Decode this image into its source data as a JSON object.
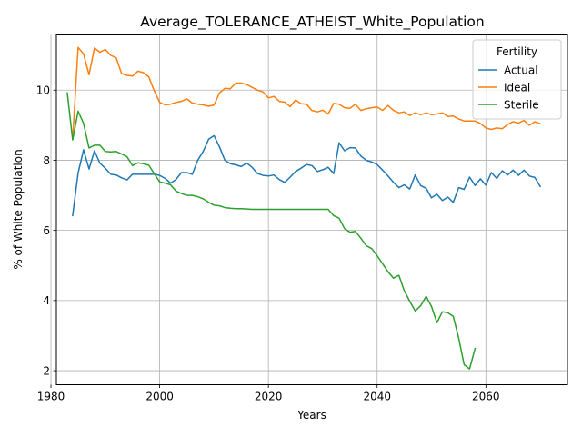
{
  "chart_data": {
    "type": "line",
    "title": "Average_TOLERANCE_ATHEIST_White_Population",
    "xlabel": "Years",
    "ylabel": "% of White Population",
    "xlim": [
      1981,
      2075
    ],
    "ylim": [
      1.6,
      11.6
    ],
    "xticks": [
      1980,
      2000,
      2020,
      2040,
      2060
    ],
    "yticks": [
      2,
      4,
      6,
      8,
      10
    ],
    "grid": true,
    "legend": {
      "title": "Fertility",
      "placement": "top-right"
    },
    "series": [
      {
        "name": "Actual",
        "color": "#1f77b4",
        "x": [
          1984,
          1985,
          1986,
          1987,
          1988,
          1989,
          1990,
          1991,
          1992,
          1993,
          1994,
          1995,
          1996,
          1997,
          1998,
          1999,
          2000,
          2001,
          2002,
          2003,
          2004,
          2005,
          2006,
          2007,
          2008,
          2009,
          2010,
          2011,
          2012,
          2013,
          2014,
          2015,
          2016,
          2017,
          2018,
          2019,
          2020,
          2021,
          2022,
          2023,
          2024,
          2025,
          2026,
          2027,
          2028,
          2029,
          2030,
          2031,
          2032,
          2033,
          2034,
          2035,
          2036,
          2037,
          2038,
          2039,
          2040,
          2041,
          2042,
          2043,
          2044,
          2045,
          2046,
          2047,
          2048,
          2049,
          2050,
          2051,
          2052,
          2053,
          2054,
          2055,
          2056,
          2057,
          2058,
          2059,
          2060,
          2061,
          2062,
          2063,
          2064,
          2065,
          2066,
          2067,
          2068,
          2069,
          2070
        ],
        "y": [
          6.42,
          7.64,
          8.3,
          7.75,
          8.27,
          7.92,
          7.77,
          7.6,
          7.58,
          7.5,
          7.44,
          7.6,
          7.6,
          7.6,
          7.6,
          7.6,
          7.57,
          7.48,
          7.35,
          7.45,
          7.65,
          7.65,
          7.6,
          8.0,
          8.25,
          8.6,
          8.7,
          8.38,
          8.0,
          7.9,
          7.87,
          7.82,
          7.92,
          7.8,
          7.62,
          7.57,
          7.55,
          7.58,
          7.45,
          7.37,
          7.52,
          7.68,
          7.77,
          7.88,
          7.85,
          7.68,
          7.73,
          7.8,
          7.62,
          8.5,
          8.27,
          8.36,
          8.35,
          8.12,
          8.0,
          7.95,
          7.88,
          7.72,
          7.55,
          7.37,
          7.22,
          7.3,
          7.18,
          7.58,
          7.28,
          7.2,
          6.93,
          7.03,
          6.85,
          6.95,
          6.8,
          7.22,
          7.17,
          7.52,
          7.28,
          7.47,
          7.29,
          7.65,
          7.48,
          7.7,
          7.58,
          7.72,
          7.57,
          7.72,
          7.55,
          7.51,
          7.25
        ]
      },
      {
        "name": "Ideal",
        "color": "#ff7f0e",
        "x": [
          1984,
          1985,
          1986,
          1987,
          1988,
          1989,
          1990,
          1991,
          1992,
          1993,
          1994,
          1995,
          1996,
          1997,
          1998,
          1999,
          2000,
          2001,
          2002,
          2003,
          2004,
          2005,
          2006,
          2007,
          2008,
          2009,
          2010,
          2011,
          2012,
          2013,
          2014,
          2015,
          2016,
          2017,
          2018,
          2019,
          2020,
          2021,
          2022,
          2023,
          2024,
          2025,
          2026,
          2027,
          2028,
          2029,
          2030,
          2031,
          2032,
          2033,
          2034,
          2035,
          2036,
          2037,
          2038,
          2039,
          2040,
          2041,
          2042,
          2043,
          2044,
          2045,
          2046,
          2047,
          2048,
          2049,
          2050,
          2051,
          2052,
          2053,
          2054,
          2055,
          2056,
          2057,
          2058,
          2059,
          2060,
          2061,
          2062,
          2063,
          2064,
          2065,
          2066,
          2067,
          2068,
          2069,
          2070
        ],
        "y": [
          8.6,
          11.22,
          11.03,
          10.44,
          11.2,
          11.08,
          11.16,
          10.99,
          10.92,
          10.47,
          10.42,
          10.4,
          10.54,
          10.5,
          10.38,
          9.98,
          9.65,
          9.58,
          9.6,
          9.65,
          9.68,
          9.75,
          9.63,
          9.6,
          9.58,
          9.54,
          9.58,
          9.92,
          10.05,
          10.04,
          10.2,
          10.2,
          10.16,
          10.08,
          10.0,
          9.95,
          9.78,
          9.82,
          9.68,
          9.66,
          9.53,
          9.72,
          9.61,
          9.6,
          9.42,
          9.38,
          9.43,
          9.32,
          9.62,
          9.6,
          9.5,
          9.48,
          9.6,
          9.42,
          9.47,
          9.5,
          9.52,
          9.42,
          9.56,
          9.42,
          9.35,
          9.38,
          9.28,
          9.35,
          9.3,
          9.35,
          9.3,
          9.32,
          9.35,
          9.25,
          9.26,
          9.18,
          9.12,
          9.12,
          9.12,
          9.05,
          8.92,
          8.88,
          8.92,
          8.9,
          9.02,
          9.1,
          9.06,
          9.14,
          9.0,
          9.1,
          9.04
        ]
      },
      {
        "name": "Sterile",
        "color": "#2ca02c",
        "x": [
          1983,
          1984,
          1985,
          1986,
          1987,
          1988,
          1989,
          1990,
          1991,
          1992,
          1993,
          1994,
          1995,
          1996,
          1997,
          1998,
          1999,
          2000,
          2001,
          2002,
          2003,
          2004,
          2005,
          2006,
          2007,
          2008,
          2009,
          2010,
          2011,
          2012,
          2013,
          2014,
          2015,
          2016,
          2017,
          2018,
          2019,
          2020,
          2021,
          2022,
          2023,
          2024,
          2025,
          2026,
          2027,
          2028,
          2029,
          2030,
          2031,
          2032,
          2033,
          2034,
          2035,
          2036,
          2037,
          2038,
          2039,
          2040,
          2041,
          2042,
          2043,
          2044,
          2045,
          2046,
          2047,
          2048,
          2049,
          2050,
          2051,
          2052,
          2053,
          2054,
          2055,
          2056,
          2057,
          2058
        ],
        "y": [
          9.92,
          8.58,
          9.4,
          9.05,
          8.35,
          8.43,
          8.43,
          8.25,
          8.24,
          8.25,
          8.18,
          8.1,
          7.85,
          7.93,
          7.9,
          7.86,
          7.62,
          7.38,
          7.35,
          7.3,
          7.12,
          7.05,
          7.0,
          7.0,
          6.96,
          6.9,
          6.8,
          6.72,
          6.7,
          6.65,
          6.63,
          6.62,
          6.62,
          6.61,
          6.6,
          6.6,
          6.6,
          6.6,
          6.6,
          6.6,
          6.6,
          6.6,
          6.6,
          6.6,
          6.6,
          6.6,
          6.6,
          6.6,
          6.6,
          6.42,
          6.35,
          6.05,
          5.95,
          5.97,
          5.78,
          5.56,
          5.48,
          5.28,
          5.05,
          4.82,
          4.64,
          4.72,
          4.28,
          3.98,
          3.7,
          3.85,
          4.12,
          3.83,
          3.37,
          3.68,
          3.65,
          3.55,
          2.93,
          2.17,
          2.05,
          2.63
        ]
      }
    ]
  }
}
